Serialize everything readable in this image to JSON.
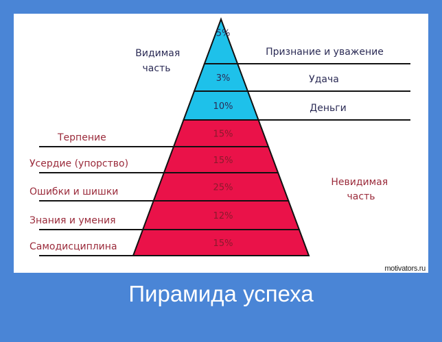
{
  "title": "Пирамида успеха",
  "watermark": "motivators.ru",
  "visible_part_label": [
    "Видимая",
    "часть"
  ],
  "invisible_part_label": [
    "Невидимая",
    "часть"
  ],
  "colors": {
    "visible": "#1ec1ea",
    "invisible": "#ea1249",
    "background": "#4a85d6"
  },
  "layers": [
    {
      "percent": "5%",
      "label": "Признание и уважение",
      "part": "visible"
    },
    {
      "percent": "3%",
      "label": "Удача",
      "part": "visible"
    },
    {
      "percent": "10%",
      "label": "Деньги",
      "part": "visible"
    },
    {
      "percent": "15%",
      "label": "Терпение",
      "part": "invisible"
    },
    {
      "percent": "15%",
      "label": "Усердие (упорство)",
      "part": "invisible"
    },
    {
      "percent": "25%",
      "label": "Ошибки и шишки",
      "part": "invisible"
    },
    {
      "percent": "12%",
      "label": "Знания и умения",
      "part": "invisible"
    },
    {
      "percent": "15%",
      "label": "Самодисциплина",
      "part": "invisible"
    }
  ]
}
